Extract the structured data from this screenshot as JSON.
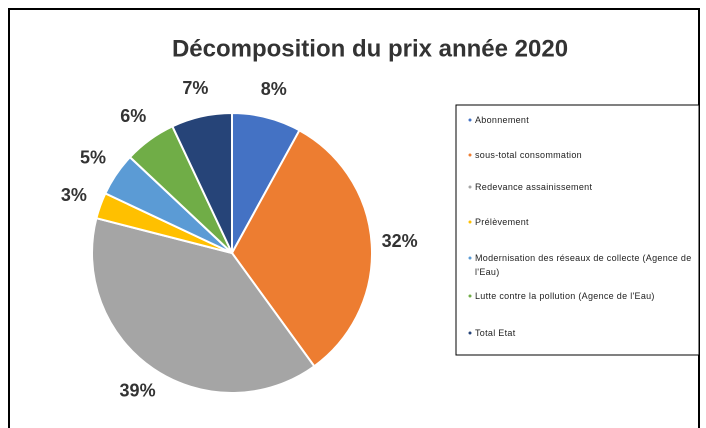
{
  "chart_data": {
    "type": "pie",
    "title": "Décomposition du prix année 2020",
    "categories": [
      "Abonnement",
      "sous-total consommation",
      "Redevance assainissement",
      "Prélèvement",
      "Modernisation des réseaux de collecte (Agence de l'Eau)",
      "Lutte contre la pollution (Agence de l'Eau)",
      "Total Etat"
    ],
    "values": [
      8,
      32,
      39,
      3,
      5,
      6,
      7
    ],
    "value_labels": [
      "8%",
      "32%",
      "39%",
      "3%",
      "5%",
      "6%",
      "7%"
    ],
    "colors": [
      "#4472c4",
      "#ed7d31",
      "#a5a5a5",
      "#ffc000",
      "#5b9bd5",
      "#70ad47",
      "#264478"
    ],
    "legend": "right"
  }
}
